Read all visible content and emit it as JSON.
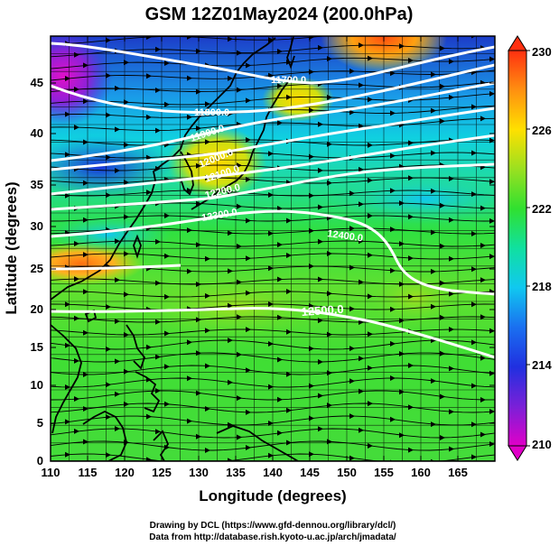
{
  "title": "GSM 12Z01May2024 (200.0hPa)",
  "xlabel": "Longitude (degrees)",
  "ylabel": "Latitude  (degrees)",
  "x_ticks": [
    "110",
    "115",
    "120",
    "125",
    "130",
    "135",
    "140",
    "145",
    "150",
    "155",
    "160",
    "165"
  ],
  "y_ticks": [
    "0",
    "5",
    "10",
    "15",
    "20",
    "25",
    "30",
    "35",
    "40",
    "45"
  ],
  "colorbar": {
    "ticks": [
      "230",
      "226",
      "222",
      "218",
      "214",
      "210"
    ],
    "range": [
      210,
      230
    ],
    "colors": [
      "#e000c8",
      "#7a20d8",
      "#2030e0",
      "#1a70f0",
      "#10c8f0",
      "#10e0a0",
      "#30e030",
      "#9ae020",
      "#ffe000",
      "#ff9010",
      "#ff3010"
    ]
  },
  "contours": [
    {
      "label": "11700.0"
    },
    {
      "label": "11800.0"
    },
    {
      "label": "11900.0"
    },
    {
      "label": "12000.0"
    },
    {
      "label": "12100.0"
    },
    {
      "label": "12200.0"
    },
    {
      "label": "12300.0"
    },
    {
      "label": "12400.0"
    },
    {
      "label": "12500.0"
    }
  ],
  "credits": {
    "line1": "Drawing by DCL (https://www.gfd-dennou.org/library/dcl/)",
    "line2": "Data from http://database.rish.kyoto-u.ac.jp/arch/jmadata/"
  }
}
